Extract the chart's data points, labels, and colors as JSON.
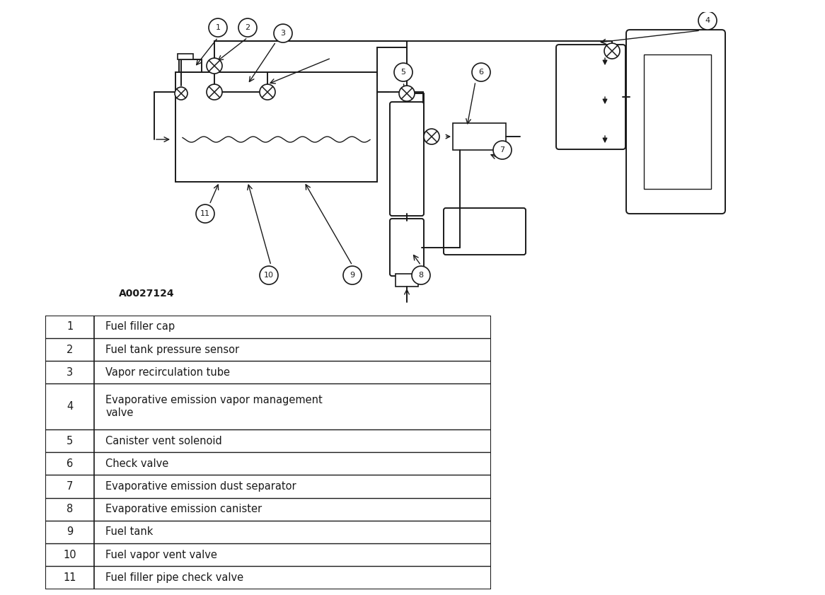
{
  "background_color": "#ffffff",
  "diagram_label": "A0027124",
  "table_items": [
    {
      "num": "1",
      "desc": "Fuel filler cap"
    },
    {
      "num": "2",
      "desc": "Fuel tank pressure sensor"
    },
    {
      "num": "3",
      "desc": "Vapor recirculation tube"
    },
    {
      "num": "4",
      "desc": "Evaporative emission vapor management\nvalve"
    },
    {
      "num": "5",
      "desc": "Canister vent solenoid"
    },
    {
      "num": "6",
      "desc": "Check valve"
    },
    {
      "num": "7",
      "desc": "Evaporative emission dust separator"
    },
    {
      "num": "8",
      "desc": "Evaporative emission canister"
    },
    {
      "num": "9",
      "desc": "Fuel tank"
    },
    {
      "num": "10",
      "desc": "Fuel vapor vent valve"
    },
    {
      "num": "11",
      "desc": "Fuel filler pipe check valve"
    }
  ],
  "lc": "#1a1a1a",
  "lw": 1.4
}
